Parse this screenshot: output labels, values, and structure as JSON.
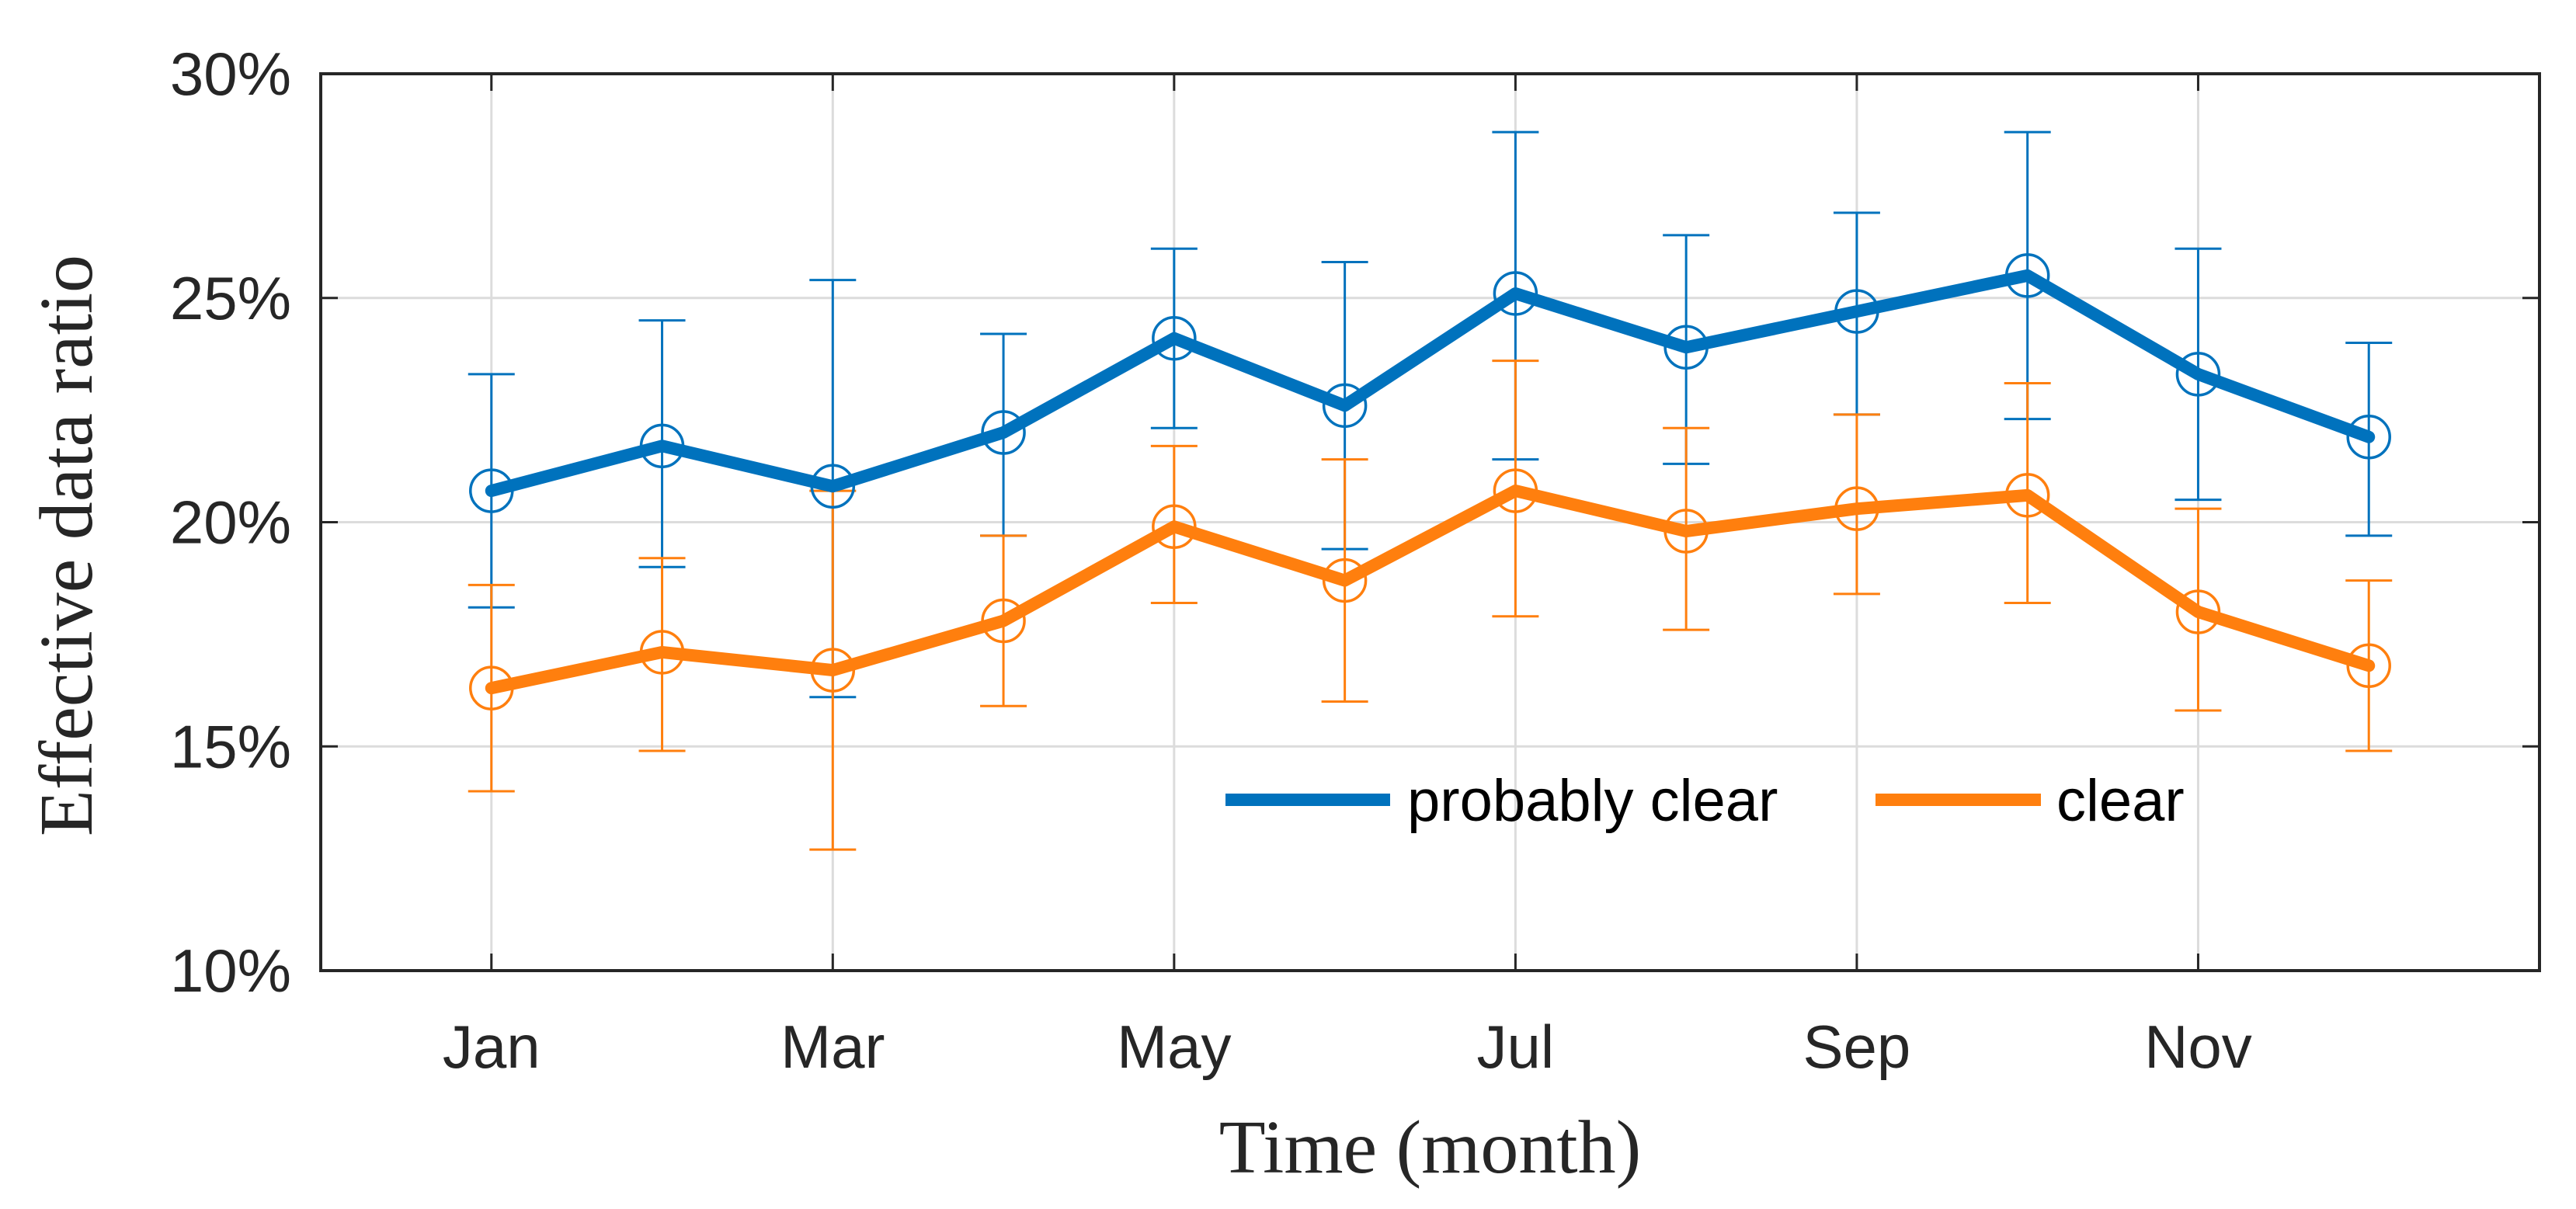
{
  "chart_data": {
    "type": "line",
    "title": "",
    "xlabel": "Time (month)",
    "ylabel": "Effective data ratio",
    "x": [
      1,
      2,
      3,
      4,
      5,
      6,
      7,
      8,
      9,
      10,
      11,
      12
    ],
    "xlim": [
      0,
      13
    ],
    "ylim": [
      10,
      30
    ],
    "grid": true,
    "x_ticks": [
      {
        "x": 1,
        "label": "Jan"
      },
      {
        "x": 3,
        "label": "Mar"
      },
      {
        "x": 5,
        "label": "May"
      },
      {
        "x": 7,
        "label": "Jul"
      },
      {
        "x": 9,
        "label": "Sep"
      },
      {
        "x": 11,
        "label": "Nov"
      }
    ],
    "y_ticks": [
      {
        "y": 10,
        "label": "10%"
      },
      {
        "y": 15,
        "label": "15%"
      },
      {
        "y": 20,
        "label": "20%"
      },
      {
        "y": 25,
        "label": "25%"
      },
      {
        "y": 30,
        "label": "30%"
      }
    ],
    "legend_position": "lower-right",
    "series": [
      {
        "name": "probably clear",
        "color": "#0072BD",
        "values": [
          20.7,
          21.7,
          20.8,
          22.0,
          24.1,
          22.6,
          25.1,
          23.9,
          24.7,
          25.5,
          23.3,
          21.9
        ],
        "upper": [
          23.3,
          24.5,
          25.4,
          24.2,
          26.1,
          25.8,
          28.7,
          26.4,
          26.9,
          28.7,
          26.1,
          24.0
        ],
        "lower": [
          18.1,
          19.0,
          16.1,
          19.7,
          22.1,
          19.4,
          21.4,
          21.3,
          22.4,
          22.3,
          20.5,
          19.7
        ]
      },
      {
        "name": "clear",
        "color": "#FF7F0E",
        "values": [
          16.3,
          17.1,
          16.7,
          17.8,
          19.9,
          18.7,
          20.7,
          19.8,
          20.3,
          20.6,
          18.0,
          16.8
        ],
        "upper": [
          18.6,
          19.2,
          20.7,
          19.7,
          21.7,
          21.4,
          23.6,
          22.1,
          22.4,
          23.1,
          20.3,
          18.7
        ],
        "lower": [
          14.0,
          14.9,
          12.7,
          15.9,
          18.2,
          16.0,
          17.9,
          17.6,
          18.4,
          18.2,
          15.8,
          14.9
        ]
      }
    ]
  }
}
